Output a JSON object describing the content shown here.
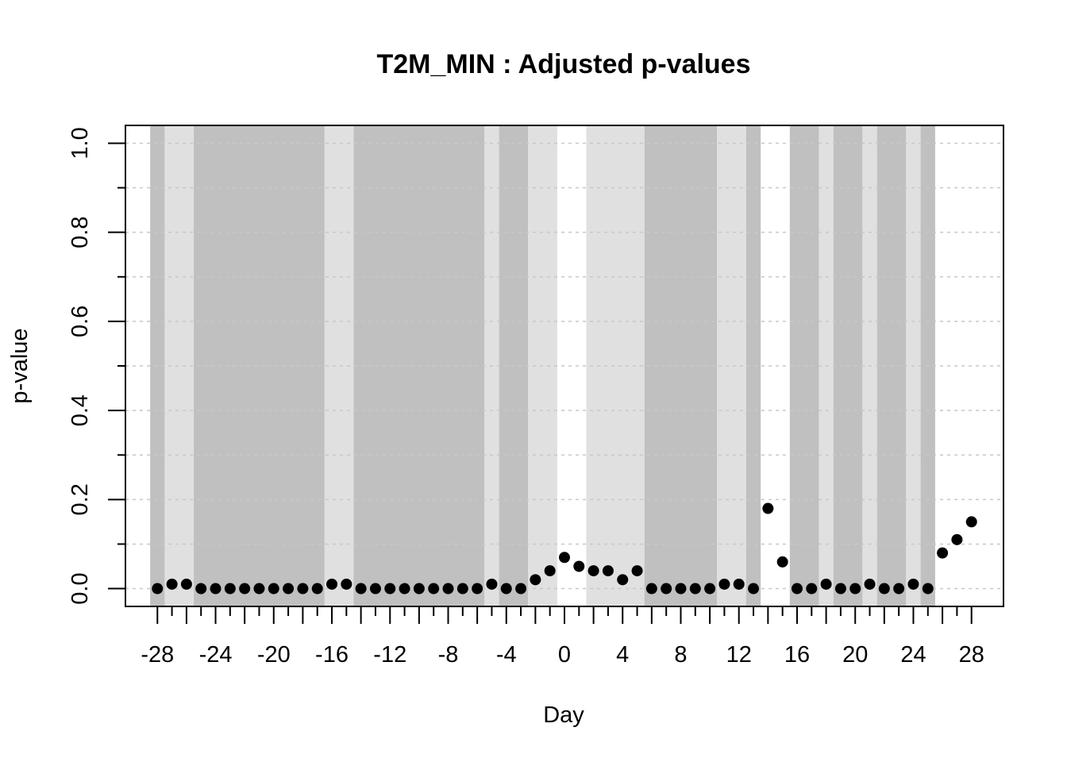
{
  "chart_data": {
    "type": "scatter",
    "title": "T2M_MIN : Adjusted p-values",
    "xlabel": "Day",
    "ylabel": "p-value",
    "xlim": [
      -30.2,
      30.2
    ],
    "ylim": [
      -0.04,
      1.04
    ],
    "x_ticks": [
      -28,
      -24,
      -20,
      -16,
      -12,
      -8,
      -4,
      0,
      4,
      8,
      12,
      16,
      20,
      24,
      28
    ],
    "x_tick_labels": [
      "-28",
      "-24",
      "-20",
      "-16",
      "-12",
      "-8",
      "-4",
      "0",
      "4",
      "8",
      "12",
      "16",
      "20",
      "24",
      "28"
    ],
    "y_ticks": [
      0,
      0.2,
      0.4,
      0.6,
      0.8,
      1.0
    ],
    "y_tick_labels": [
      "0.0",
      "0.2",
      "0.4",
      "0.6",
      "0.8",
      "1.0"
    ],
    "grid": "horizontal dotted",
    "series": [
      {
        "x": [
          -28,
          -27,
          -26,
          -25,
          -24,
          -23,
          -22,
          -21,
          -20,
          -19,
          -18,
          -17,
          -16,
          -15,
          -14,
          -13,
          -12,
          -11,
          -10,
          -9,
          -8,
          -7,
          -6,
          -5,
          -4,
          -3,
          -2,
          -1,
          0,
          1,
          2,
          3,
          4,
          5,
          6,
          7,
          8,
          9,
          10,
          11,
          12,
          13,
          14,
          15,
          16,
          17,
          18,
          19,
          20,
          21,
          22,
          23,
          24,
          25,
          26,
          27,
          28
        ],
        "y": [
          0,
          0.01,
          0.01,
          0,
          0,
          0,
          0,
          0,
          0,
          0,
          0,
          0,
          0.01,
          0.01,
          0,
          0,
          0,
          0,
          0,
          0,
          0,
          0,
          0,
          0.01,
          0,
          0,
          0.02,
          0.04,
          0.07,
          0.05,
          0.04,
          0.04,
          0.02,
          0.04,
          0,
          0,
          0,
          0,
          0,
          0.01,
          0.01,
          0,
          0.18,
          0.06,
          0,
          0,
          0.01,
          0,
          0,
          0.01,
          0,
          0,
          0.01,
          0,
          0.08,
          0.11,
          0.15
        ]
      }
    ],
    "bands": [
      {
        "from": -28.5,
        "to": -27.5,
        "color": "#c0c0c0"
      },
      {
        "from": -27.5,
        "to": -25.5,
        "color": "#e0e0e0"
      },
      {
        "from": -25.5,
        "to": -16.5,
        "color": "#c0c0c0"
      },
      {
        "from": -16.5,
        "to": -14.5,
        "color": "#e0e0e0"
      },
      {
        "from": -14.5,
        "to": -5.5,
        "color": "#c0c0c0"
      },
      {
        "from": -5.5,
        "to": -4.5,
        "color": "#e0e0e0"
      },
      {
        "from": -4.5,
        "to": -2.5,
        "color": "#c0c0c0"
      },
      {
        "from": -2.5,
        "to": -0.5,
        "color": "#e0e0e0"
      },
      {
        "from": 1.5,
        "to": 5.5,
        "color": "#e0e0e0"
      },
      {
        "from": 5.5,
        "to": 10.5,
        "color": "#c0c0c0"
      },
      {
        "from": 10.5,
        "to": 12.5,
        "color": "#e0e0e0"
      },
      {
        "from": 12.5,
        "to": 13.5,
        "color": "#c0c0c0"
      },
      {
        "from": 15.5,
        "to": 17.5,
        "color": "#c0c0c0"
      },
      {
        "from": 17.5,
        "to": 18.5,
        "color": "#e0e0e0"
      },
      {
        "from": 18.5,
        "to": 20.5,
        "color": "#c0c0c0"
      },
      {
        "from": 20.5,
        "to": 21.5,
        "color": "#e0e0e0"
      },
      {
        "from": 21.5,
        "to": 23.5,
        "color": "#c0c0c0"
      },
      {
        "from": 23.5,
        "to": 24.5,
        "color": "#e0e0e0"
      },
      {
        "from": 24.5,
        "to": 25.5,
        "color": "#c0c0c0"
      }
    ],
    "colors": {
      "point": "#000000",
      "band_dark": "#c0c0c0",
      "band_light": "#e0e0e0",
      "grid": "#c8c8c8"
    }
  }
}
